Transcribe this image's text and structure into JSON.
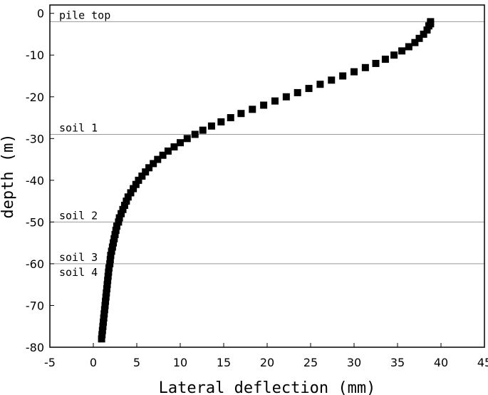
{
  "chart_data": {
    "type": "scatter",
    "title": "",
    "xlabel": "Lateral deflection (mm)",
    "ylabel": "depth (m)",
    "xlim": [
      -5,
      45
    ],
    "ylim": [
      -80,
      2
    ],
    "xticks": [
      -5,
      0,
      5,
      10,
      15,
      20,
      25,
      30,
      35,
      40,
      45
    ],
    "yticks": [
      0,
      -10,
      -20,
      -30,
      -40,
      -50,
      -60,
      -70,
      -80
    ],
    "xtick_labels": [
      "-5",
      "0",
      "5",
      "10",
      "15",
      "20",
      "25",
      "30",
      "35",
      "40",
      "45"
    ],
    "ytick_labels": [
      "0",
      "-10",
      "-20",
      "-30",
      "-40",
      "-50",
      "-60",
      "-70",
      "-80"
    ],
    "grid": false,
    "marker": "square",
    "marker_color": "#000000",
    "reference_lines": [
      {
        "label": "pile top",
        "y": -2
      },
      {
        "label": "soil 1",
        "y": -29
      },
      {
        "label": "soil 2",
        "y": -50
      },
      {
        "label": "soil 3",
        "y": -60
      },
      {
        "label": "soil 4",
        "y": -60
      }
    ],
    "series": [
      {
        "points": [
          [
            38.8,
            -2
          ],
          [
            38.8,
            -2.5
          ],
          [
            38.6,
            -3
          ],
          [
            38.4,
            -4
          ],
          [
            38.0,
            -5
          ],
          [
            37.5,
            -6
          ],
          [
            37.0,
            -7
          ],
          [
            36.3,
            -8
          ],
          [
            35.5,
            -9
          ],
          [
            34.6,
            -10
          ],
          [
            33.6,
            -11
          ],
          [
            32.5,
            -12
          ],
          [
            31.3,
            -13
          ],
          [
            30.0,
            -14
          ],
          [
            28.7,
            -15
          ],
          [
            27.4,
            -16
          ],
          [
            26.1,
            -17
          ],
          [
            24.8,
            -18
          ],
          [
            23.5,
            -19
          ],
          [
            22.2,
            -20
          ],
          [
            20.9,
            -21
          ],
          [
            19.6,
            -22
          ],
          [
            18.3,
            -23
          ],
          [
            17.0,
            -24
          ],
          [
            15.8,
            -25
          ],
          [
            14.7,
            -26
          ],
          [
            13.6,
            -27
          ],
          [
            12.6,
            -28
          ],
          [
            11.7,
            -29
          ],
          [
            10.8,
            -30
          ],
          [
            10.0,
            -31
          ],
          [
            9.3,
            -32
          ],
          [
            8.6,
            -33
          ],
          [
            8.0,
            -34
          ],
          [
            7.4,
            -35
          ],
          [
            6.9,
            -36
          ],
          [
            6.4,
            -37
          ],
          [
            6.0,
            -38
          ],
          [
            5.6,
            -39
          ],
          [
            5.2,
            -40
          ],
          [
            4.9,
            -41
          ],
          [
            4.6,
            -42
          ],
          [
            4.3,
            -43
          ],
          [
            4.0,
            -44
          ],
          [
            3.8,
            -45
          ],
          [
            3.6,
            -46
          ],
          [
            3.4,
            -47
          ],
          [
            3.2,
            -48
          ],
          [
            3.0,
            -49
          ],
          [
            2.9,
            -50
          ],
          [
            2.7,
            -51
          ],
          [
            2.6,
            -52
          ],
          [
            2.5,
            -53
          ],
          [
            2.4,
            -54
          ],
          [
            2.3,
            -55
          ],
          [
            2.2,
            -56
          ],
          [
            2.1,
            -57
          ],
          [
            2.0,
            -58
          ],
          [
            1.95,
            -59
          ],
          [
            1.9,
            -60
          ],
          [
            1.8,
            -61
          ],
          [
            1.75,
            -62
          ],
          [
            1.7,
            -63
          ],
          [
            1.65,
            -64
          ],
          [
            1.6,
            -65
          ],
          [
            1.55,
            -66
          ],
          [
            1.5,
            -67
          ],
          [
            1.45,
            -68
          ],
          [
            1.4,
            -69
          ],
          [
            1.35,
            -70
          ],
          [
            1.3,
            -71
          ],
          [
            1.25,
            -72
          ],
          [
            1.2,
            -73
          ],
          [
            1.15,
            -74
          ],
          [
            1.1,
            -75
          ],
          [
            1.05,
            -76
          ],
          [
            1.0,
            -77
          ],
          [
            0.95,
            -78
          ]
        ]
      }
    ]
  }
}
